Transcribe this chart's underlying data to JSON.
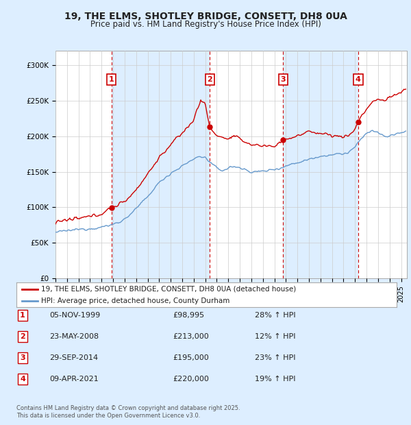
{
  "title_line1": "19, THE ELMS, SHOTLEY BRIDGE, CONSETT, DH8 0UA",
  "title_line2": "Price paid vs. HM Land Registry's House Price Index (HPI)",
  "legend_label_red": "19, THE ELMS, SHOTLEY BRIDGE, CONSETT, DH8 0UA (detached house)",
  "legend_label_blue": "HPI: Average price, detached house, County Durham",
  "footer_line1": "Contains HM Land Registry data © Crown copyright and database right 2025.",
  "footer_line2": "This data is licensed under the Open Government Licence v3.0.",
  "transactions": [
    {
      "num": 1,
      "date": "05-NOV-1999",
      "date_val": 1999.85,
      "price": 98995,
      "pct": "28% ↑ HPI"
    },
    {
      "num": 2,
      "date": "23-MAY-2008",
      "date_val": 2008.39,
      "price": 213000,
      "pct": "12% ↑ HPI"
    },
    {
      "num": 3,
      "date": "29-SEP-2014",
      "date_val": 2014.75,
      "price": 195000,
      "pct": "23% ↑ HPI"
    },
    {
      "num": 4,
      "date": "09-APR-2021",
      "date_val": 2021.27,
      "price": 220000,
      "pct": "19% ↑ HPI"
    }
  ],
  "ylim": [
    0,
    320000
  ],
  "xlim_start": 1995.0,
  "xlim_end": 2025.5,
  "yticks": [
    0,
    50000,
    100000,
    150000,
    200000,
    250000,
    300000
  ],
  "ytick_labels": [
    "£0",
    "£50K",
    "£100K",
    "£150K",
    "£200K",
    "£250K",
    "£300K"
  ],
  "xticks": [
    1995,
    1996,
    1997,
    1998,
    1999,
    2000,
    2001,
    2002,
    2003,
    2004,
    2005,
    2006,
    2007,
    2008,
    2009,
    2010,
    2011,
    2012,
    2013,
    2014,
    2015,
    2016,
    2017,
    2018,
    2019,
    2020,
    2021,
    2022,
    2023,
    2024,
    2025
  ],
  "red_color": "#cc0000",
  "blue_color": "#6699cc",
  "bg_color": "#ddeeff",
  "plot_bg": "#ffffff",
  "shade_color": "#ddeeff",
  "grid_color": "#cccccc",
  "hpi_anchors": [
    [
      1995.0,
      65000
    ],
    [
      1996.0,
      67000
    ],
    [
      1997.0,
      69000
    ],
    [
      1998.0,
      70000
    ],
    [
      1999.0,
      72000
    ],
    [
      2000.0,
      76000
    ],
    [
      2001.0,
      83000
    ],
    [
      2002.0,
      98000
    ],
    [
      2003.0,
      115000
    ],
    [
      2004.0,
      135000
    ],
    [
      2005.0,
      148000
    ],
    [
      2006.0,
      158000
    ],
    [
      2007.0,
      168000
    ],
    [
      2007.5,
      172000
    ],
    [
      2008.0,
      170000
    ],
    [
      2008.5,
      162000
    ],
    [
      2009.0,
      155000
    ],
    [
      2009.5,
      152000
    ],
    [
      2010.0,
      155000
    ],
    [
      2010.5,
      158000
    ],
    [
      2011.0,
      155000
    ],
    [
      2011.5,
      153000
    ],
    [
      2012.0,
      150000
    ],
    [
      2012.5,
      150000
    ],
    [
      2013.0,
      151000
    ],
    [
      2013.5,
      152000
    ],
    [
      2014.0,
      154000
    ],
    [
      2014.5,
      155000
    ],
    [
      2015.0,
      158000
    ],
    [
      2015.5,
      161000
    ],
    [
      2016.0,
      163000
    ],
    [
      2016.5,
      165000
    ],
    [
      2017.0,
      168000
    ],
    [
      2017.5,
      170000
    ],
    [
      2018.0,
      172000
    ],
    [
      2018.5,
      173000
    ],
    [
      2019.0,
      174000
    ],
    [
      2019.5,
      175000
    ],
    [
      2020.0,
      175000
    ],
    [
      2020.5,
      178000
    ],
    [
      2021.0,
      185000
    ],
    [
      2021.5,
      195000
    ],
    [
      2022.0,
      205000
    ],
    [
      2022.5,
      208000
    ],
    [
      2023.0,
      205000
    ],
    [
      2023.5,
      200000
    ],
    [
      2024.0,
      200000
    ],
    [
      2024.5,
      203000
    ],
    [
      2025.0,
      205000
    ],
    [
      2025.4,
      207000
    ]
  ],
  "red_anchors": [
    [
      1995.0,
      80000
    ],
    [
      1996.0,
      82000
    ],
    [
      1997.0,
      84000
    ],
    [
      1998.0,
      87000
    ],
    [
      1999.0,
      91000
    ],
    [
      1999.85,
      98995
    ],
    [
      2000.0,
      100000
    ],
    [
      2001.0,
      108000
    ],
    [
      2002.0,
      125000
    ],
    [
      2003.0,
      147000
    ],
    [
      2004.0,
      170000
    ],
    [
      2005.0,
      188000
    ],
    [
      2006.0,
      205000
    ],
    [
      2007.0,
      222000
    ],
    [
      2007.3,
      240000
    ],
    [
      2007.6,
      250000
    ],
    [
      2008.0,
      245000
    ],
    [
      2008.39,
      213000
    ],
    [
      2008.6,
      207000
    ],
    [
      2009.0,
      202000
    ],
    [
      2009.5,
      198000
    ],
    [
      2010.0,
      196000
    ],
    [
      2010.5,
      200000
    ],
    [
      2011.0,
      196000
    ],
    [
      2011.5,
      192000
    ],
    [
      2012.0,
      188000
    ],
    [
      2012.5,
      188000
    ],
    [
      2013.0,
      186000
    ],
    [
      2013.5,
      187000
    ],
    [
      2014.0,
      185000
    ],
    [
      2014.75,
      195000
    ],
    [
      2015.0,
      196000
    ],
    [
      2015.5,
      198000
    ],
    [
      2016.0,
      200000
    ],
    [
      2016.5,
      203000
    ],
    [
      2017.0,
      207000
    ],
    [
      2017.5,
      206000
    ],
    [
      2018.0,
      204000
    ],
    [
      2018.5,
      203000
    ],
    [
      2019.0,
      201000
    ],
    [
      2019.5,
      200000
    ],
    [
      2020.0,
      199000
    ],
    [
      2020.5,
      202000
    ],
    [
      2021.0,
      210000
    ],
    [
      2021.27,
      220000
    ],
    [
      2021.5,
      228000
    ],
    [
      2022.0,
      238000
    ],
    [
      2022.5,
      248000
    ],
    [
      2023.0,
      252000
    ],
    [
      2023.5,
      250000
    ],
    [
      2024.0,
      255000
    ],
    [
      2024.5,
      258000
    ],
    [
      2025.0,
      262000
    ],
    [
      2025.4,
      268000
    ]
  ]
}
